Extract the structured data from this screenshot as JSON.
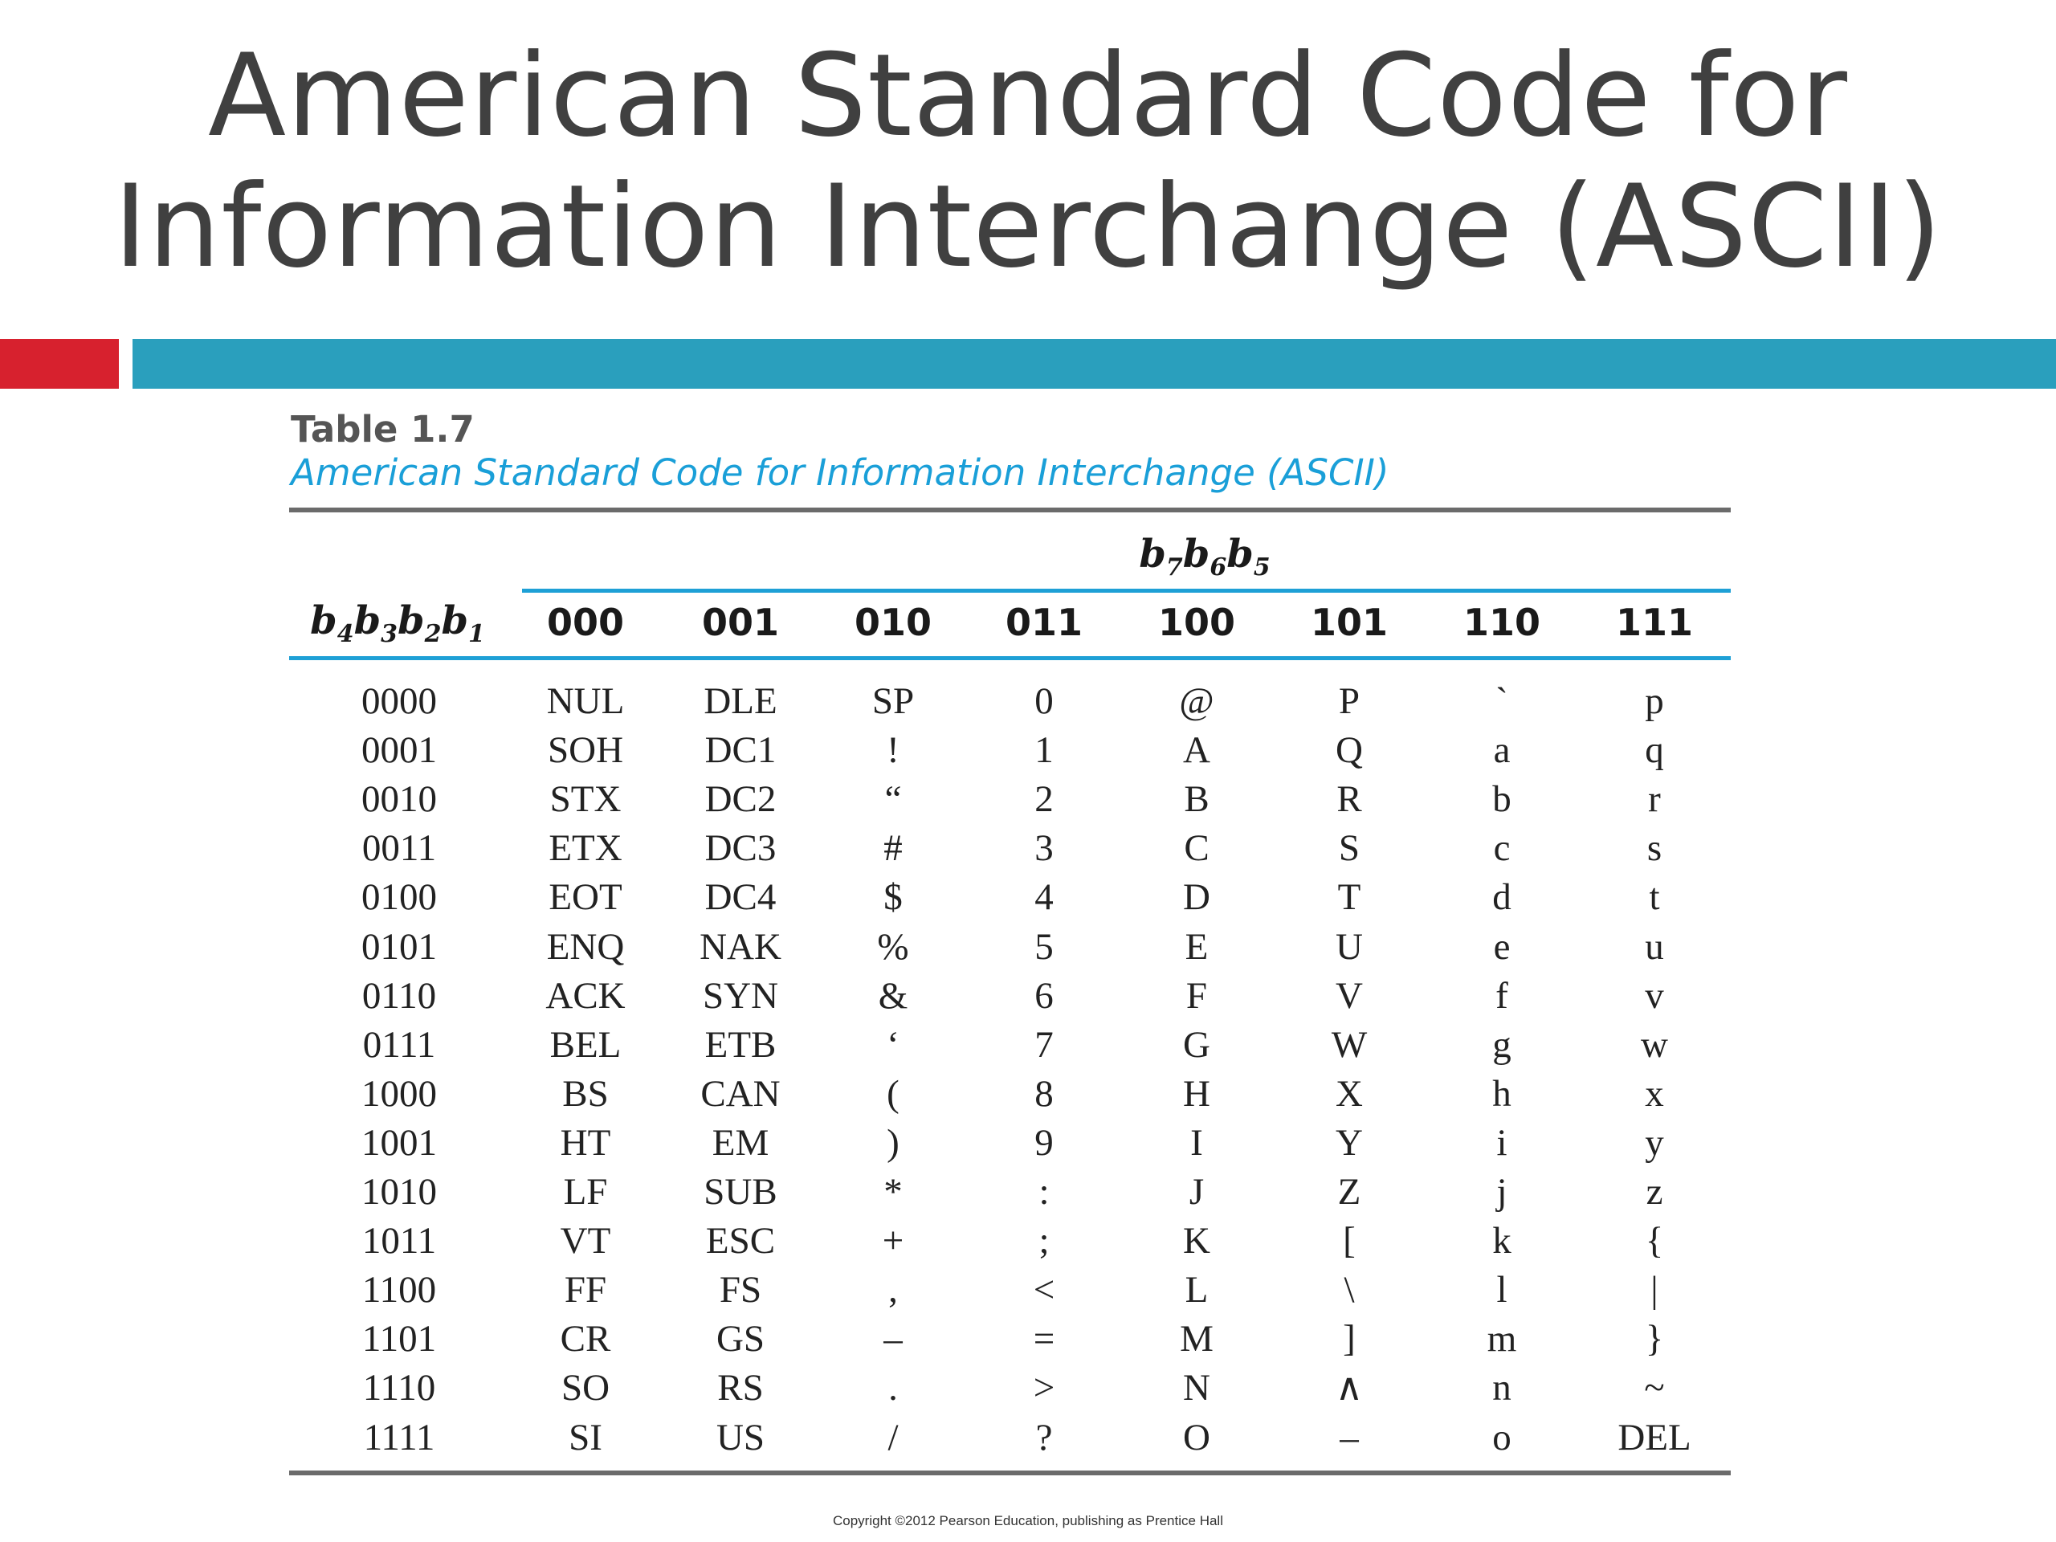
{
  "slide": {
    "title_line1": "American Standard Code for",
    "title_line2": "Information Interchange (ASCII)"
  },
  "colors": {
    "accent_red": "#d7212e",
    "accent_teal": "#2a9fbd",
    "table_rule_blue": "#1ea0d6",
    "caption_blue": "#1a9fd8"
  },
  "table": {
    "label": "Table 1.7",
    "caption": "American Standard Code for Information Interchange (ASCII)",
    "column_group_header": "b7b6b5",
    "row_header": "b4b3b2b1",
    "columns": [
      "000",
      "001",
      "010",
      "011",
      "100",
      "101",
      "110",
      "111"
    ],
    "rows": [
      {
        "code": "0000",
        "cells": [
          "NUL",
          "DLE",
          "SP",
          "0",
          "@",
          "P",
          "`",
          "p"
        ]
      },
      {
        "code": "0001",
        "cells": [
          "SOH",
          "DC1",
          "!",
          "1",
          "A",
          "Q",
          "a",
          "q"
        ]
      },
      {
        "code": "0010",
        "cells": [
          "STX",
          "DC2",
          "“",
          "2",
          "B",
          "R",
          "b",
          "r"
        ]
      },
      {
        "code": "0011",
        "cells": [
          "ETX",
          "DC3",
          "#",
          "3",
          "C",
          "S",
          "c",
          "s"
        ]
      },
      {
        "code": "0100",
        "cells": [
          "EOT",
          "DC4",
          "$",
          "4",
          "D",
          "T",
          "d",
          "t"
        ]
      },
      {
        "code": "0101",
        "cells": [
          "ENQ",
          "NAK",
          "%",
          "5",
          "E",
          "U",
          "e",
          "u"
        ]
      },
      {
        "code": "0110",
        "cells": [
          "ACK",
          "SYN",
          "&",
          "6",
          "F",
          "V",
          "f",
          "v"
        ]
      },
      {
        "code": "0111",
        "cells": [
          "BEL",
          "ETB",
          "‘",
          "7",
          "G",
          "W",
          "g",
          "w"
        ]
      },
      {
        "code": "1000",
        "cells": [
          "BS",
          "CAN",
          "(",
          "8",
          "H",
          "X",
          "h",
          "x"
        ]
      },
      {
        "code": "1001",
        "cells": [
          "HT",
          "EM",
          ")",
          "9",
          "I",
          "Y",
          "i",
          "y"
        ]
      },
      {
        "code": "1010",
        "cells": [
          "LF",
          "SUB",
          "*",
          ":",
          "J",
          "Z",
          "j",
          "z"
        ]
      },
      {
        "code": "1011",
        "cells": [
          "VT",
          "ESC",
          "+",
          ";",
          "K",
          "[",
          "k",
          "{"
        ]
      },
      {
        "code": "1100",
        "cells": [
          "FF",
          "FS",
          ",",
          "<",
          "L",
          "\\",
          "l",
          "|"
        ]
      },
      {
        "code": "1101",
        "cells": [
          "CR",
          "GS",
          "–",
          "=",
          "M",
          "]",
          "m",
          "}"
        ]
      },
      {
        "code": "1110",
        "cells": [
          "SO",
          "RS",
          ".",
          ">",
          "N",
          "∧",
          "n",
          "~"
        ]
      },
      {
        "code": "1111",
        "cells": [
          "SI",
          "US",
          "/",
          "?",
          "O",
          "–",
          "o",
          "DEL"
        ]
      }
    ]
  },
  "copyright": "Copyright ©2012 Pearson Education, publishing as Prentice Hall"
}
